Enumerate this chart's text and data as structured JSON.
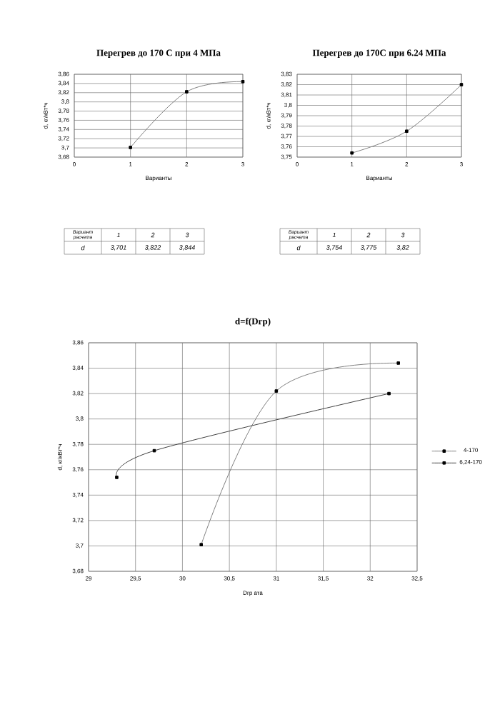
{
  "chart_data": [
    {
      "type": "line",
      "title": "Перегрев до 170 С при 4 МПа",
      "xlabel": "Варианты",
      "ylabel": "d, кг/кВт*ч",
      "x": [
        1,
        2,
        3
      ],
      "values": [
        3.701,
        3.822,
        3.844
      ],
      "color": "#808080",
      "marker": "square",
      "grid": true,
      "xlim": [
        0,
        3
      ],
      "xticks": [
        0,
        1,
        2,
        3
      ],
      "ylim": [
        3.68,
        3.86
      ],
      "yticks": [
        {
          "value": 3.68,
          "label": "3,68"
        },
        {
          "value": 3.7,
          "label": "3,7"
        },
        {
          "value": 3.72,
          "label": "3,72"
        },
        {
          "value": 3.74,
          "label": "3,74"
        },
        {
          "value": 3.76,
          "label": "3,76"
        },
        {
          "value": 3.78,
          "label": "3,78"
        },
        {
          "value": 3.8,
          "label": "3,8"
        },
        {
          "value": 3.82,
          "label": "3,82"
        },
        {
          "value": 3.84,
          "label": "3,84"
        },
        {
          "value": 3.86,
          "label": "3,86"
        }
      ],
      "annotations": [
        "Вариант расчета",
        "1",
        "2",
        "3",
        "d",
        "3,701",
        "3,822",
        "3,844"
      ]
    },
    {
      "type": "line",
      "title": "Перегрев до 170С при 6.24 МПа",
      "xlabel": "Варианты",
      "ylabel": "d, кг/кВт*ч",
      "x": [
        1,
        2,
        3
      ],
      "values": [
        3.754,
        3.775,
        3.82
      ],
      "color": "#808080",
      "marker": "square",
      "grid": true,
      "xlim": [
        0,
        3
      ],
      "xticks": [
        0,
        1,
        2,
        3
      ],
      "ylim": [
        3.75,
        3.83
      ],
      "yticks": [
        {
          "value": 3.75,
          "label": "3,75"
        },
        {
          "value": 3.76,
          "label": "3,76"
        },
        {
          "value": 3.77,
          "label": "3,77"
        },
        {
          "value": 3.78,
          "label": "3,78"
        },
        {
          "value": 3.79,
          "label": "3,79"
        },
        {
          "value": 3.8,
          "label": "3,8"
        },
        {
          "value": 3.81,
          "label": "3,81"
        },
        {
          "value": 3.82,
          "label": "3,82"
        },
        {
          "value": 3.83,
          "label": "3,83"
        }
      ],
      "annotations": [
        "Вариант расчета",
        "1",
        "2",
        "3",
        "d",
        "3,754",
        "3,775",
        "3,82"
      ]
    },
    {
      "type": "line",
      "title": "d=f(Dгр)",
      "xlabel": "Dгр ата",
      "ylabel": "d, кг/кВт*ч",
      "marker": "square",
      "grid": true,
      "legend": "right",
      "xlim": [
        29,
        32.5
      ],
      "xticks": [
        29,
        {
          "value": 29.5,
          "label": "29,5"
        },
        30,
        {
          "value": 30.5,
          "label": "30,5"
        },
        31,
        {
          "value": 31.5,
          "label": "31,5"
        },
        32,
        {
          "value": 32.5,
          "label": "32,5"
        }
      ],
      "ylim": [
        3.68,
        3.86
      ],
      "yticks": [
        {
          "value": 3.68,
          "label": "3,68"
        },
        {
          "value": 3.7,
          "label": "3,7"
        },
        {
          "value": 3.72,
          "label": "3,72"
        },
        {
          "value": 3.74,
          "label": "3,74"
        },
        {
          "value": 3.76,
          "label": "3,76"
        },
        {
          "value": 3.78,
          "label": "3,78"
        },
        {
          "value": 3.8,
          "label": "3,8"
        },
        {
          "value": 3.82,
          "label": "3,82"
        },
        {
          "value": 3.84,
          "label": "3,84"
        },
        {
          "value": 3.86,
          "label": "3,86"
        }
      ],
      "series": [
        {
          "name": "4-170",
          "color": "#808080",
          "x": [
            30.2,
            31.0,
            32.3
          ],
          "values": [
            3.701,
            3.822,
            3.844
          ]
        },
        {
          "name": "6,24-170",
          "color": "#404040",
          "x": [
            29.3,
            29.7,
            32.2
          ],
          "values": [
            3.754,
            3.775,
            3.82
          ]
        }
      ]
    }
  ]
}
